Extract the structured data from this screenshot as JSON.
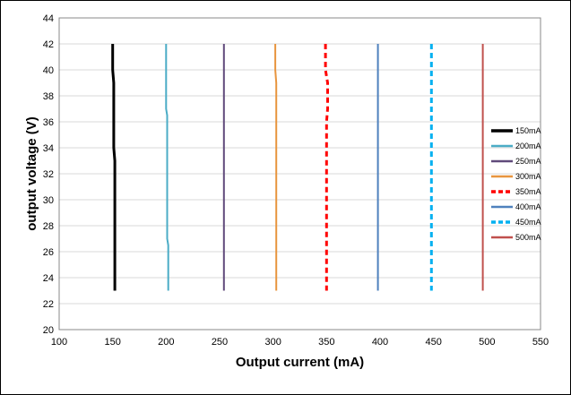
{
  "chart_data": {
    "type": "line",
    "title": "",
    "xlabel": "Output current (mA)",
    "ylabel": "output voltage (V)",
    "xlim": [
      100,
      550
    ],
    "ylim": [
      20,
      44
    ],
    "xticks": [
      100,
      150,
      200,
      250,
      300,
      350,
      400,
      450,
      500,
      550
    ],
    "yticks": [
      20,
      22,
      24,
      26,
      28,
      30,
      32,
      34,
      36,
      38,
      40,
      42,
      44
    ],
    "grid": "horizontal",
    "legend_position": "right",
    "series": [
      {
        "name": "150mA",
        "color": "#000000",
        "dashed": false,
        "width": 3,
        "points": [
          [
            150,
            42
          ],
          [
            150,
            40
          ],
          [
            151,
            39
          ],
          [
            151,
            35
          ],
          [
            151,
            34
          ],
          [
            152,
            33
          ],
          [
            152,
            23
          ]
        ]
      },
      {
        "name": "200mA",
        "color": "#4bacc6",
        "dashed": false,
        "width": 2,
        "points": [
          [
            200,
            42
          ],
          [
            200,
            37
          ],
          [
            201,
            36.5
          ],
          [
            201,
            27
          ],
          [
            202,
            26.5
          ],
          [
            202,
            23
          ]
        ]
      },
      {
        "name": "250mA",
        "color": "#604a7b",
        "dashed": false,
        "width": 2,
        "points": [
          [
            254,
            42
          ],
          [
            254,
            23
          ]
        ]
      },
      {
        "name": "300mA",
        "color": "#e8953f",
        "dashed": false,
        "width": 2,
        "points": [
          [
            302,
            42
          ],
          [
            302,
            40
          ],
          [
            303,
            39
          ],
          [
            303,
            23
          ]
        ]
      },
      {
        "name": "350mA",
        "color": "#ff0000",
        "dashed": true,
        "width": 3,
        "points": [
          [
            349,
            42
          ],
          [
            349,
            40
          ],
          [
            351,
            39
          ],
          [
            351,
            37
          ],
          [
            350,
            36
          ],
          [
            350,
            23
          ]
        ]
      },
      {
        "name": "400mA",
        "color": "#4f81bd",
        "dashed": false,
        "width": 2,
        "points": [
          [
            398,
            42
          ],
          [
            398,
            23
          ]
        ]
      },
      {
        "name": "450mA",
        "color": "#00b0f0",
        "dashed": true,
        "width": 3,
        "points": [
          [
            448,
            42
          ],
          [
            448,
            23
          ]
        ]
      },
      {
        "name": "500mA",
        "color": "#c0504d",
        "dashed": false,
        "width": 2,
        "points": [
          [
            496,
            42
          ],
          [
            496,
            23
          ]
        ]
      }
    ]
  }
}
